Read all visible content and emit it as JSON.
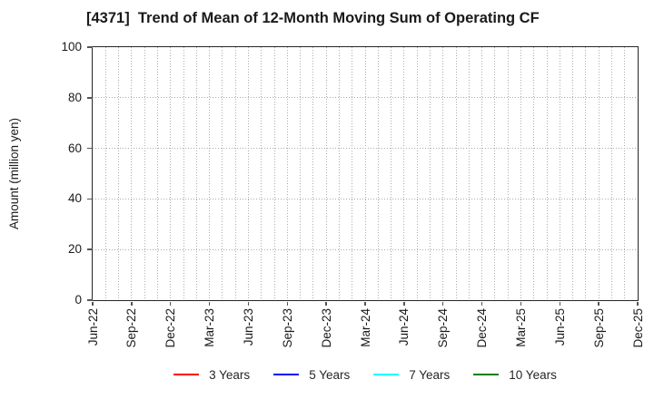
{
  "chart_data": {
    "type": "line",
    "title": "[4371]  Trend of Mean of 12-Month Moving Sum of Operating CF",
    "xlabel": "",
    "ylabel": "Amount (million yen)",
    "ylim": [
      0,
      100
    ],
    "yticks": [
      0,
      20,
      40,
      60,
      80,
      100
    ],
    "x_tick_labels": [
      "Jun-22",
      "Sep-22",
      "Dec-22",
      "Mar-23",
      "Jun-23",
      "Sep-23",
      "Dec-23",
      "Mar-24",
      "Jun-24",
      "Sep-24",
      "Dec-24",
      "Mar-25",
      "Jun-25",
      "Sep-25",
      "Dec-25"
    ],
    "x_minor_divisions_per_tick": 3,
    "grid": true,
    "grid_style": "dotted",
    "legend_position": "bottom-center",
    "frame_color": "#262626",
    "grid_color": "#ababab",
    "text_color": "#1a1a1a",
    "series": [
      {
        "name": "3 Years",
        "color": "#ff0000",
        "values": []
      },
      {
        "name": "5 Years",
        "color": "#0000ff",
        "values": []
      },
      {
        "name": "7 Years",
        "color": "#00ffff",
        "values": []
      },
      {
        "name": "10 Years",
        "color": "#008000",
        "values": []
      }
    ]
  }
}
